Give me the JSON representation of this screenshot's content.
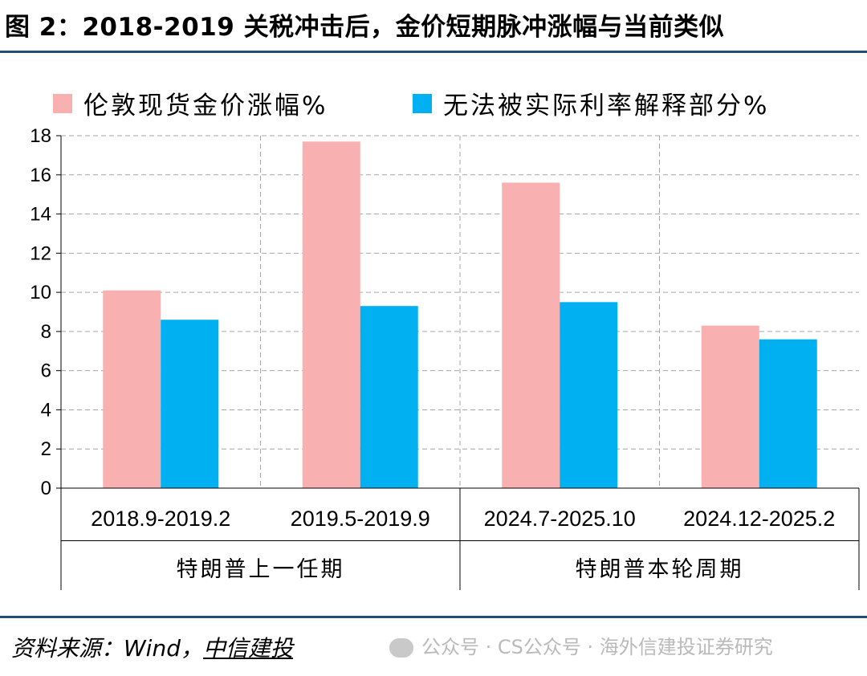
{
  "title": "图 2：2018-2019 关税冲击后，金价短期脉冲涨幅与当前类似",
  "source": {
    "prefix": "资料来源：Wind，",
    "org": "中信建投"
  },
  "watermark": "公众号 · CS公众号 · 海外信建投证券研究",
  "colors": {
    "series1": "#F8B0B0",
    "series2": "#00B0F0",
    "rule": "#1F4E79",
    "grid": "#A6A6A6"
  },
  "chart_data": {
    "type": "bar",
    "categories": [
      "2018.9-2019.2",
      "2019.5-2019.9",
      "2024.7-2025.10",
      "2024.12-2025.2"
    ],
    "groups": [
      {
        "label": "特朗普上一任期",
        "span": [
          0,
          1
        ]
      },
      {
        "label": "特朗普本轮周期",
        "span": [
          2,
          3
        ]
      }
    ],
    "series": [
      {
        "name": "伦敦现货金价涨幅%",
        "values": [
          10.1,
          17.7,
          15.6,
          8.3
        ]
      },
      {
        "name": "无法被实际利率解释部分%",
        "values": [
          8.6,
          9.3,
          9.5,
          7.6
        ]
      }
    ],
    "ylim": [
      0,
      18
    ],
    "yticks": [
      0,
      2,
      4,
      6,
      8,
      10,
      12,
      14,
      16,
      18
    ],
    "grid": "dashed",
    "legend": "top"
  }
}
